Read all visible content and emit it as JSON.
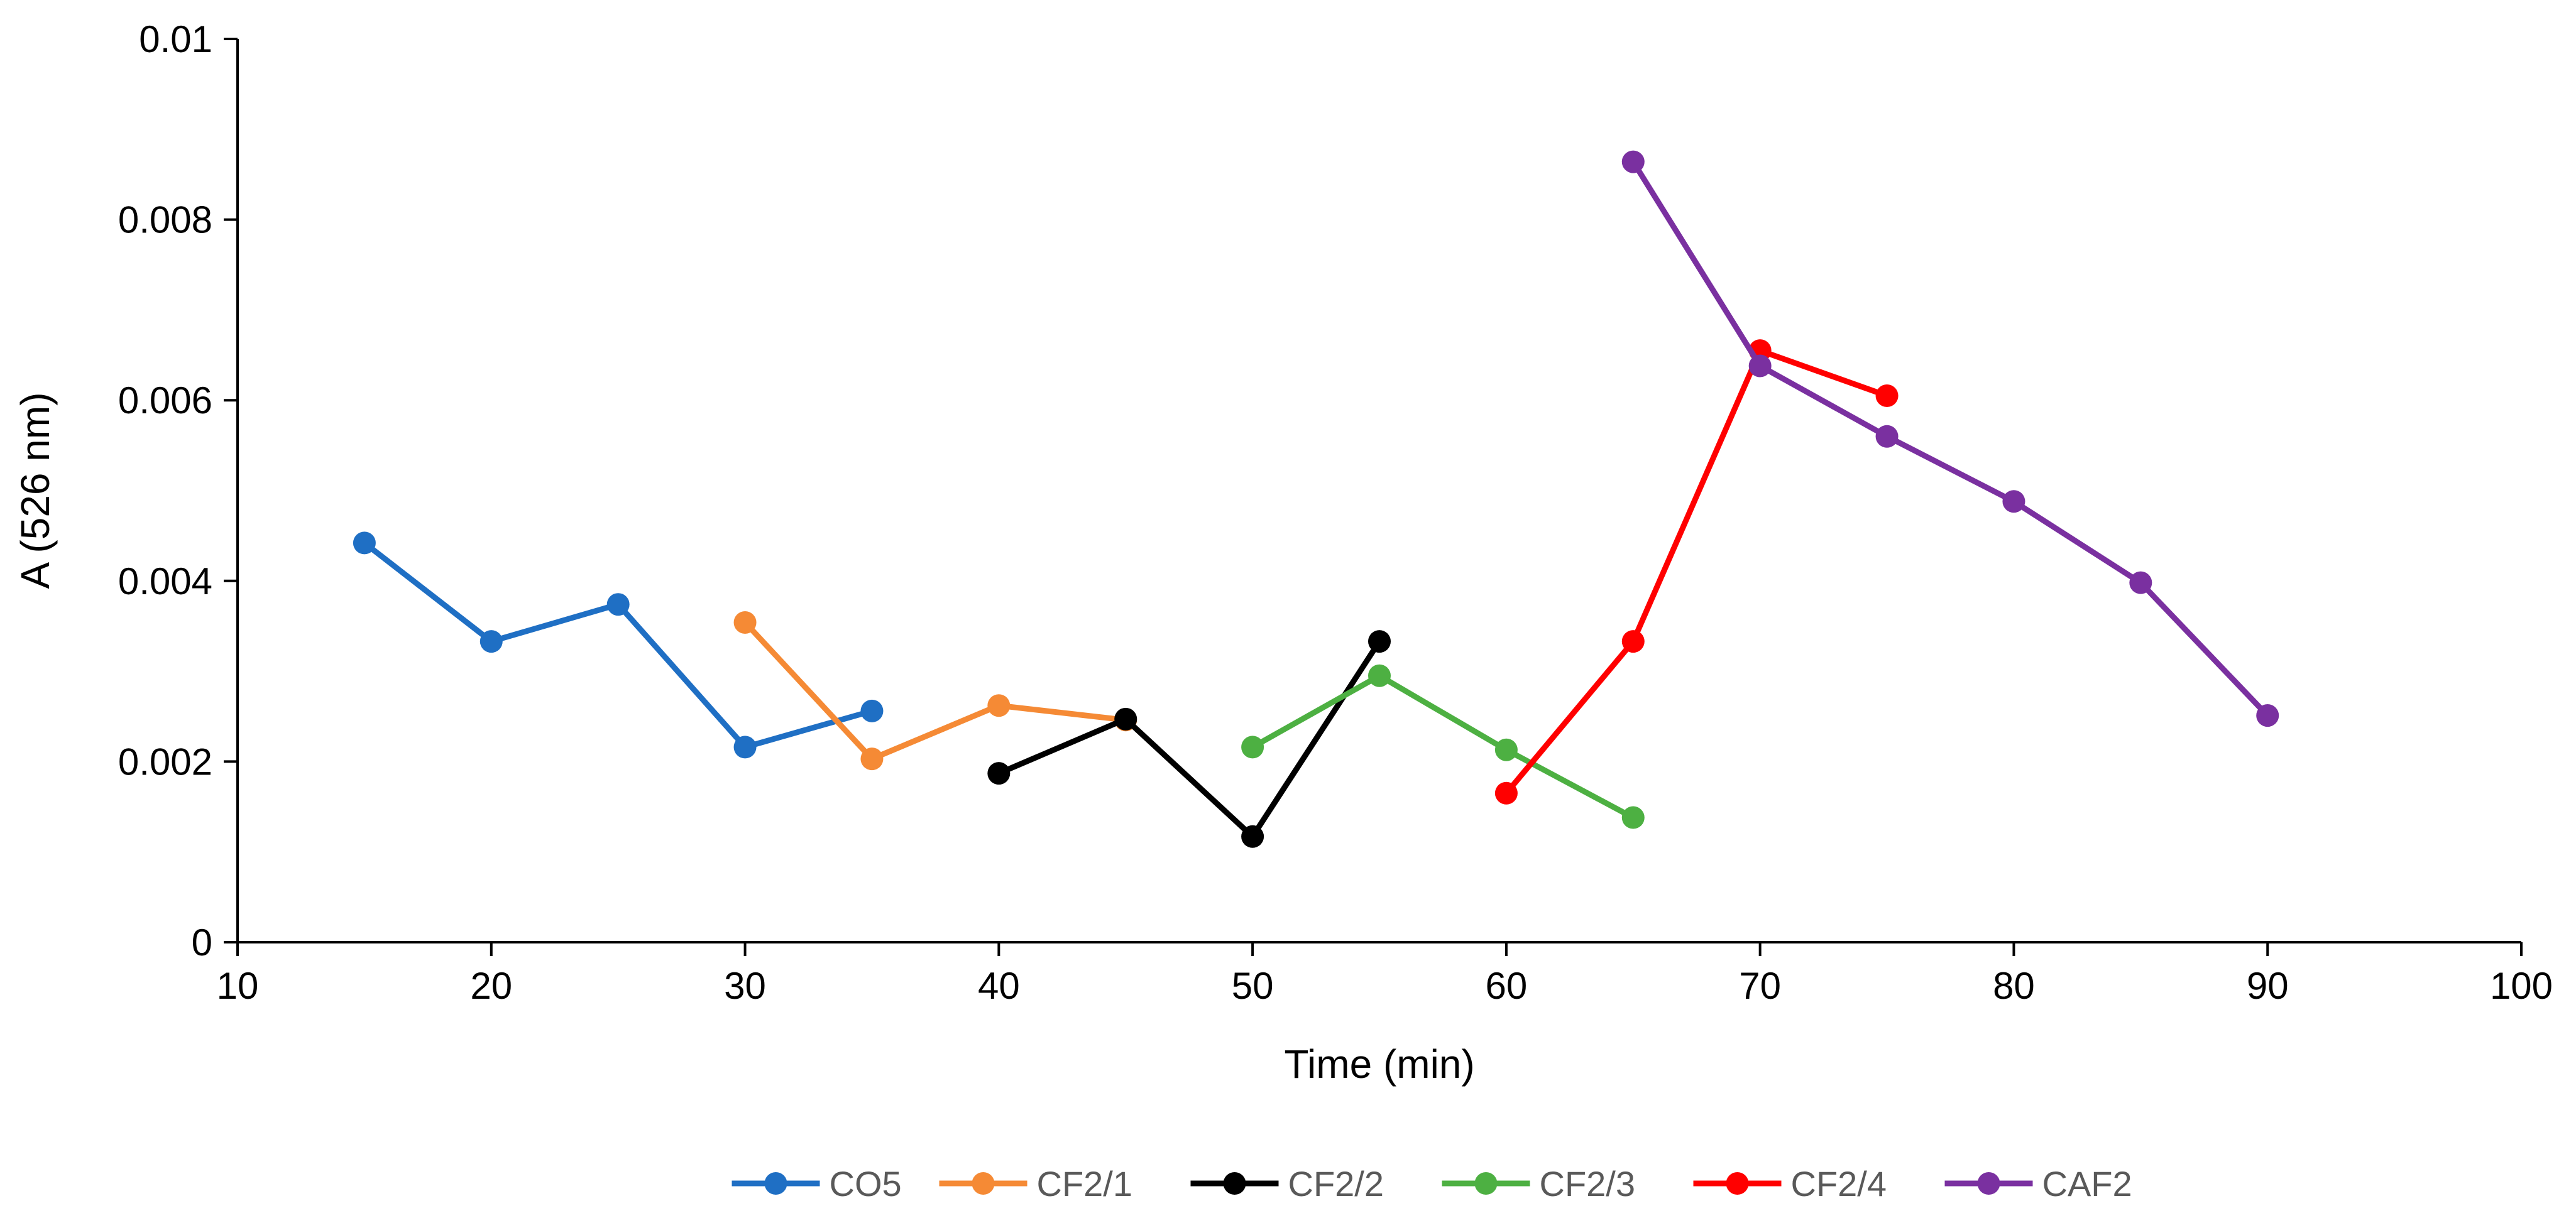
{
  "chart_data": {
    "type": "line",
    "title": "",
    "xlabel": "Time (min)",
    "ylabel": "A (526 nm)",
    "xlim": [
      10,
      100
    ],
    "ylim": [
      0,
      0.01
    ],
    "x_ticks": [
      10,
      20,
      30,
      40,
      50,
      60,
      70,
      80,
      90,
      100
    ],
    "y_ticks": [
      0,
      0.002,
      0.004,
      0.006,
      0.008,
      0.01
    ],
    "x_tick_labels": [
      "10",
      "20",
      "30",
      "40",
      "50",
      "60",
      "70",
      "80",
      "90",
      "100"
    ],
    "y_tick_labels": [
      "0",
      "0.002",
      "0.004",
      "0.006",
      "0.008",
      "0.01"
    ],
    "grid": false,
    "legend_position": "bottom",
    "series": [
      {
        "name": "CO5",
        "color": "#1f6fc4",
        "x": [
          15,
          20,
          25,
          30,
          35
        ],
        "y": [
          0.00442,
          0.00333,
          0.00374,
          0.00216,
          0.00256
        ]
      },
      {
        "name": "CF2/1",
        "color": "#f58a35",
        "x": [
          30,
          35,
          40,
          45
        ],
        "y": [
          0.00354,
          0.00203,
          0.00262,
          0.00246
        ]
      },
      {
        "name": "CF2/2",
        "color": "#000000",
        "x": [
          40,
          45,
          50,
          55
        ],
        "y": [
          0.00187,
          0.00247,
          0.00117,
          0.00333
        ]
      },
      {
        "name": "CF2/3",
        "color": "#4db042",
        "x": [
          50,
          55,
          60,
          65
        ],
        "y": [
          0.00216,
          0.00295,
          0.00213,
          0.00138
        ]
      },
      {
        "name": "CF2/4",
        "color": "#ff0000",
        "x": [
          60,
          65,
          70,
          75
        ],
        "y": [
          0.00165,
          0.00333,
          0.00655,
          0.00605
        ]
      },
      {
        "name": "CAF2",
        "color": "#7a30a0",
        "x": [
          65,
          70,
          75,
          80,
          85,
          90
        ],
        "y": [
          0.00864,
          0.00638,
          0.0056,
          0.00488,
          0.00398,
          0.00251
        ]
      }
    ]
  }
}
